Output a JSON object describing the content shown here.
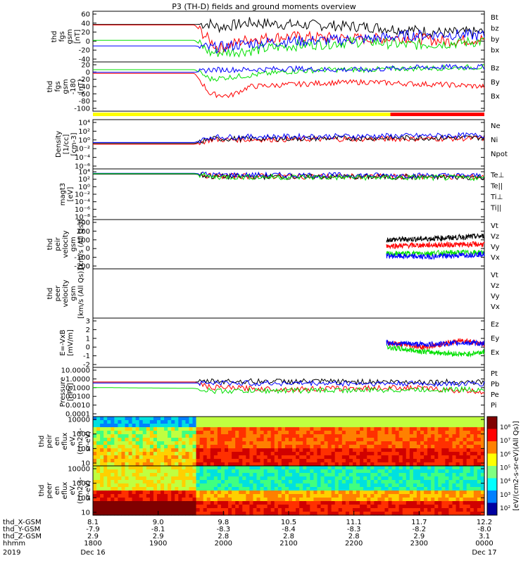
{
  "title": "P3 (TH-D) fields and ground moments overview",
  "colors": {
    "black": "#000000",
    "red": "#ff0000",
    "green": "#00e000",
    "blue": "#0000ff",
    "yellow": "#ffff00"
  },
  "chart_data": [
    {
      "type": "line",
      "ylabel": [
        "thd",
        "fgs",
        "gsm",
        "[nT]"
      ],
      "yticks": [
        "60",
        "40",
        "20",
        "0",
        "-20",
        "-40"
      ],
      "ylim": [
        -40,
        60
      ],
      "series": [
        {
          "name": "Bt",
          "color": "black",
          "points": [
            [
              0,
              36
            ],
            [
              0.26,
              36
            ],
            [
              0.3,
              38
            ],
            [
              0.32,
              30
            ],
            [
              0.4,
              40
            ],
            [
              0.5,
              36
            ],
            [
              0.6,
              34
            ],
            [
              0.7,
              31
            ],
            [
              0.8,
              25
            ],
            [
              0.9,
              18
            ],
            [
              1,
              20
            ]
          ]
        },
        {
          "name": "bz",
          "color": "red",
          "points": [
            [
              0,
              35
            ],
            [
              0.26,
              35
            ],
            [
              0.3,
              0
            ],
            [
              0.32,
              -15
            ],
            [
              0.4,
              5
            ],
            [
              0.5,
              10
            ],
            [
              0.6,
              8
            ],
            [
              0.7,
              5
            ],
            [
              0.8,
              8
            ],
            [
              0.9,
              0
            ],
            [
              1,
              5
            ]
          ]
        },
        {
          "name": "by",
          "color": "green",
          "points": [
            [
              0,
              2
            ],
            [
              0.26,
              2
            ],
            [
              0.3,
              -25
            ],
            [
              0.4,
              -20
            ],
            [
              0.5,
              -10
            ],
            [
              0.6,
              -5
            ],
            [
              0.7,
              0
            ],
            [
              0.8,
              -8
            ],
            [
              0.9,
              -5
            ],
            [
              1,
              0
            ]
          ]
        },
        {
          "name": "bx",
          "color": "blue",
          "points": [
            [
              0,
              -10
            ],
            [
              0.26,
              -10
            ],
            [
              0.3,
              -15
            ],
            [
              0.4,
              -5
            ],
            [
              0.5,
              0
            ],
            [
              0.6,
              2
            ],
            [
              0.7,
              5
            ],
            [
              0.8,
              12
            ],
            [
              0.9,
              15
            ],
            [
              1,
              12
            ]
          ]
        }
      ]
    },
    {
      "type": "line",
      "ylabel": [
        "thd",
        "fgs",
        "gsm",
        "-180",
        "[nT]"
      ],
      "yticks": [
        "20",
        "0",
        "-20",
        "-40",
        "-60",
        "-80",
        "-100"
      ],
      "ylim": [
        -100,
        20
      ],
      "series": [
        {
          "name": "Bz",
          "color": "red",
          "points": [
            [
              0,
              -5
            ],
            [
              0.26,
              -5
            ],
            [
              0.3,
              -60
            ],
            [
              0.35,
              -65
            ],
            [
              0.4,
              -40
            ],
            [
              0.5,
              -35
            ],
            [
              0.6,
              -30
            ],
            [
              0.7,
              -28
            ],
            [
              0.8,
              -32
            ],
            [
              0.9,
              -35
            ],
            [
              1,
              -40
            ]
          ]
        },
        {
          "name": "By",
          "color": "green",
          "points": [
            [
              0,
              5
            ],
            [
              0.26,
              5
            ],
            [
              0.3,
              -20
            ],
            [
              0.4,
              -10
            ],
            [
              0.5,
              0
            ],
            [
              0.6,
              5
            ],
            [
              0.7,
              5
            ],
            [
              0.8,
              8
            ],
            [
              0.9,
              10
            ],
            [
              1,
              12
            ]
          ]
        },
        {
          "name": "Bx",
          "color": "blue",
          "points": [
            [
              0,
              -2
            ],
            [
              0.26,
              -2
            ],
            [
              0.3,
              5
            ],
            [
              0.4,
              5
            ],
            [
              0.5,
              8
            ],
            [
              0.6,
              5
            ],
            [
              0.7,
              5
            ],
            [
              0.8,
              10
            ],
            [
              0.9,
              12
            ],
            [
              1,
              12
            ]
          ]
        }
      ]
    },
    {
      "type": "line",
      "ylabel": [
        "Density",
        "[1/cc]",
        "[cm-3]"
      ],
      "yticks": [
        "10⁴",
        "10²",
        "10⁰",
        "10⁻²",
        "10⁻⁴",
        "10⁻⁶"
      ],
      "ylim": [
        -6,
        4
      ],
      "log": true,
      "series": [
        {
          "name": "Ne",
          "color": "red",
          "points": [
            [
              0,
              -1
            ],
            [
              0.26,
              -1
            ],
            [
              0.3,
              0
            ],
            [
              1,
              0.3
            ]
          ]
        },
        {
          "name": "Ni",
          "color": "black",
          "points": [
            [
              0,
              -0.8
            ],
            [
              0.26,
              -0.8
            ],
            [
              0.3,
              0.2
            ],
            [
              1,
              0.5
            ]
          ]
        },
        {
          "name": "Npot",
          "color": "blue",
          "points": [
            [
              0,
              -0.6
            ],
            [
              0.26,
              -0.6
            ],
            [
              0.3,
              0.6
            ],
            [
              1,
              1
            ]
          ]
        }
      ]
    },
    {
      "type": "line",
      "ylabel": [
        "magt3",
        "[eV]"
      ],
      "yticks": [
        "10⁴",
        "10²",
        "10⁰",
        "10⁻²",
        "10⁻⁴",
        "10⁻⁶",
        "10⁻⁸"
      ],
      "ylim": [
        -8,
        4
      ],
      "log": true,
      "series": [
        {
          "name": "Te⊥",
          "color": "red",
          "points": [
            [
              0,
              3.3
            ],
            [
              0.26,
              3.3
            ],
            [
              0.3,
              2.7
            ],
            [
              1,
              2.5
            ]
          ]
        },
        {
          "name": "Te||",
          "color": "black",
          "points": [
            [
              0,
              3.2
            ],
            [
              0.26,
              3.2
            ],
            [
              0.3,
              2.6
            ],
            [
              1,
              2.4
            ]
          ]
        },
        {
          "name": "Ti⊥",
          "color": "blue",
          "points": [
            [
              0,
              3.4
            ],
            [
              0.26,
              3.4
            ],
            [
              0.3,
              3
            ],
            [
              1,
              2.8
            ]
          ]
        },
        {
          "name": "Ti||",
          "color": "green",
          "points": [
            [
              0,
              3.3
            ],
            [
              0.26,
              3.3
            ],
            [
              0.3,
              2.5
            ],
            [
              1,
              2.2
            ]
          ]
        }
      ]
    },
    {
      "type": "line",
      "ylabel": [
        "thd",
        "peir",
        "velocity",
        "gsm",
        "[km/s (All Qs)]"
      ],
      "yticks": [
        "300",
        "200",
        "100",
        "0",
        "-100",
        "-200"
      ],
      "ylim": [
        -200,
        300
      ],
      "series": [
        {
          "name": "Vt",
          "color": "black",
          "points": [
            [
              0.75,
              100
            ],
            [
              0.85,
              110
            ],
            [
              1,
              140
            ]
          ]
        },
        {
          "name": "Vz",
          "color": "red",
          "points": [
            [
              0.75,
              30
            ],
            [
              0.85,
              40
            ],
            [
              1,
              50
            ]
          ]
        },
        {
          "name": "Vy",
          "color": "green",
          "points": [
            [
              0.75,
              -60
            ],
            [
              0.85,
              -50
            ],
            [
              1,
              -40
            ]
          ]
        },
        {
          "name": "Vx",
          "color": "blue",
          "points": [
            [
              0.75,
              -80
            ],
            [
              0.85,
              -90
            ],
            [
              1,
              -60
            ]
          ]
        }
      ]
    },
    {
      "type": "line",
      "ylabel": [
        "thd",
        "peer",
        "velocity",
        "gsm",
        "[km/s (All Qs)]"
      ],
      "yticks": [],
      "series": [
        {
          "name": "Vt",
          "color": "black",
          "points": []
        },
        {
          "name": "Vz",
          "color": "red",
          "points": []
        },
        {
          "name": "Vy",
          "color": "green",
          "points": []
        },
        {
          "name": "Vx",
          "color": "blue",
          "points": []
        }
      ]
    },
    {
      "type": "line",
      "ylabel": [
        "E=-VxB",
        "[mV/m]"
      ],
      "yticks": [
        "3",
        "2",
        "1",
        "0",
        "-1",
        "-2"
      ],
      "ylim": [
        -2,
        3
      ],
      "series": [
        {
          "name": "Ez",
          "color": "red",
          "points": [
            [
              0.75,
              0.5
            ],
            [
              0.85,
              0
            ],
            [
              0.95,
              0.8
            ],
            [
              1,
              0.3
            ]
          ]
        },
        {
          "name": "Ey",
          "color": "green",
          "points": [
            [
              0.75,
              0
            ],
            [
              0.85,
              -0.5
            ],
            [
              0.95,
              -0.8
            ],
            [
              1,
              -0.5
            ]
          ]
        },
        {
          "name": "Ex",
          "color": "blue",
          "points": [
            [
              0.75,
              0.5
            ],
            [
              0.85,
              0.3
            ],
            [
              0.95,
              0.5
            ],
            [
              1,
              0.4
            ]
          ]
        }
      ]
    },
    {
      "type": "line",
      "ylabel": [
        "Pressure",
        "[nPa]"
      ],
      "yticks": [
        "10.0000",
        "1.0000",
        "0.1000",
        "0.0100",
        "0.0010",
        "0.0001"
      ],
      "ylim": [
        -4,
        1
      ],
      "log": true,
      "series": [
        {
          "name": "Pt",
          "color": "black",
          "points": [
            [
              0,
              -0.4
            ],
            [
              0.26,
              -0.4
            ],
            [
              0.3,
              -0.3
            ],
            [
              1,
              -0.4
            ]
          ]
        },
        {
          "name": "Pb",
          "color": "red",
          "points": [
            [
              0,
              -0.4
            ],
            [
              0.26,
              -0.4
            ],
            [
              0.3,
              -1
            ],
            [
              0.5,
              -1.2
            ],
            [
              0.8,
              -1
            ],
            [
              1,
              -1.5
            ]
          ]
        },
        {
          "name": "Pe",
          "color": "green",
          "points": [
            [
              0,
              -1
            ],
            [
              0.26,
              -1.1
            ],
            [
              0.3,
              -1.4
            ],
            [
              1,
              -1.2
            ]
          ]
        },
        {
          "name": "Pi",
          "color": "blue",
          "points": [
            [
              0,
              -0.5
            ],
            [
              0.26,
              -0.5
            ],
            [
              0.3,
              -0.5
            ],
            [
              1,
              -0.6
            ]
          ]
        }
      ]
    },
    {
      "type": "heatmap",
      "ylabel": [
        "thd",
        "peir",
        "en",
        "eflux",
        "eV",
        "(cm2-s-",
        "sr-eV)"
      ],
      "yticks": [
        "10000",
        "1000",
        "100",
        "10"
      ],
      "ylim": [
        1,
        4.2
      ],
      "log": true
    },
    {
      "type": "heatmap",
      "ylabel": [
        "thd",
        "peer",
        "en",
        "eflux",
        "eV",
        "(cm2-s-",
        "sr-eV)"
      ],
      "yticks": [
        "10000",
        "1000",
        "100",
        "10"
      ],
      "ylim": [
        1,
        4.2
      ],
      "log": true
    }
  ],
  "colorbar": {
    "label": "[eV/(cm2-s-sr-eV)(All Qs)]",
    "ticks": [
      "10⁸",
      "10⁷",
      "10⁶",
      "10⁵",
      "10⁴",
      "10³",
      "10²"
    ]
  },
  "xaxis": {
    "rows": [
      {
        "label": "thd_X-GSM",
        "values": [
          "8.1",
          "9.0",
          "9.8",
          "10.5",
          "11.1",
          "11.7",
          "12.2"
        ]
      },
      {
        "label": "thd_Y-GSM",
        "values": [
          "-7.9",
          "-8.1",
          "-8.3",
          "-8.4",
          "-8.3",
          "-8.2",
          "-8.0"
        ]
      },
      {
        "label": "thd_Z-GSM",
        "values": [
          "2.9",
          "2.9",
          "2.8",
          "2.8",
          "2.8",
          "2.9",
          "3.1"
        ]
      },
      {
        "label": "hhmm",
        "values": [
          "1800",
          "1900",
          "2000",
          "2100",
          "2200",
          "2300",
          "0000"
        ]
      }
    ],
    "date_left": "2019",
    "date_start": "Dec 16",
    "date_end": "Dec 17"
  }
}
